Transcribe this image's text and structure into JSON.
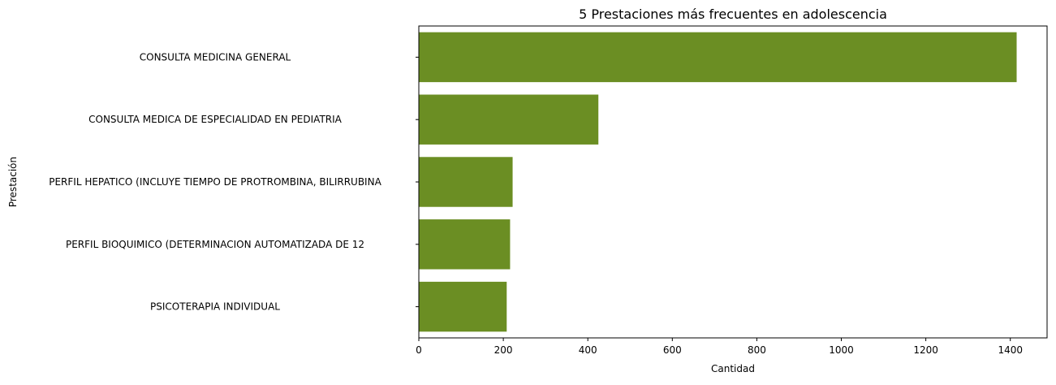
{
  "chart_data": {
    "type": "bar",
    "orientation": "horizontal",
    "title": "5 Prestaciones más frecuentes en adolescencia",
    "xlabel": "Cantidad",
    "ylabel": "Prestación",
    "categories": [
      "CONSULTA MEDICINA GENERAL",
      "CONSULTA MEDICA DE ESPECIALIDAD EN PEDIATRIA",
      "PERFIL HEPATICO (INCLUYE TIEMPO DE PROTROMBINA, BILIRRUBINA",
      "PERFIL BIOQUIMICO (DETERMINACION AUTOMATIZADA DE 12",
      "PSICOTERAPIA INDIVIDUAL"
    ],
    "values": [
      1415,
      425,
      222,
      216,
      208
    ],
    "xlim": [
      0,
      1487
    ],
    "xticks": [
      0,
      200,
      400,
      600,
      800,
      1000,
      1200,
      1400
    ],
    "bar_color": "#6b8e23",
    "grid": false,
    "legend": "none"
  }
}
